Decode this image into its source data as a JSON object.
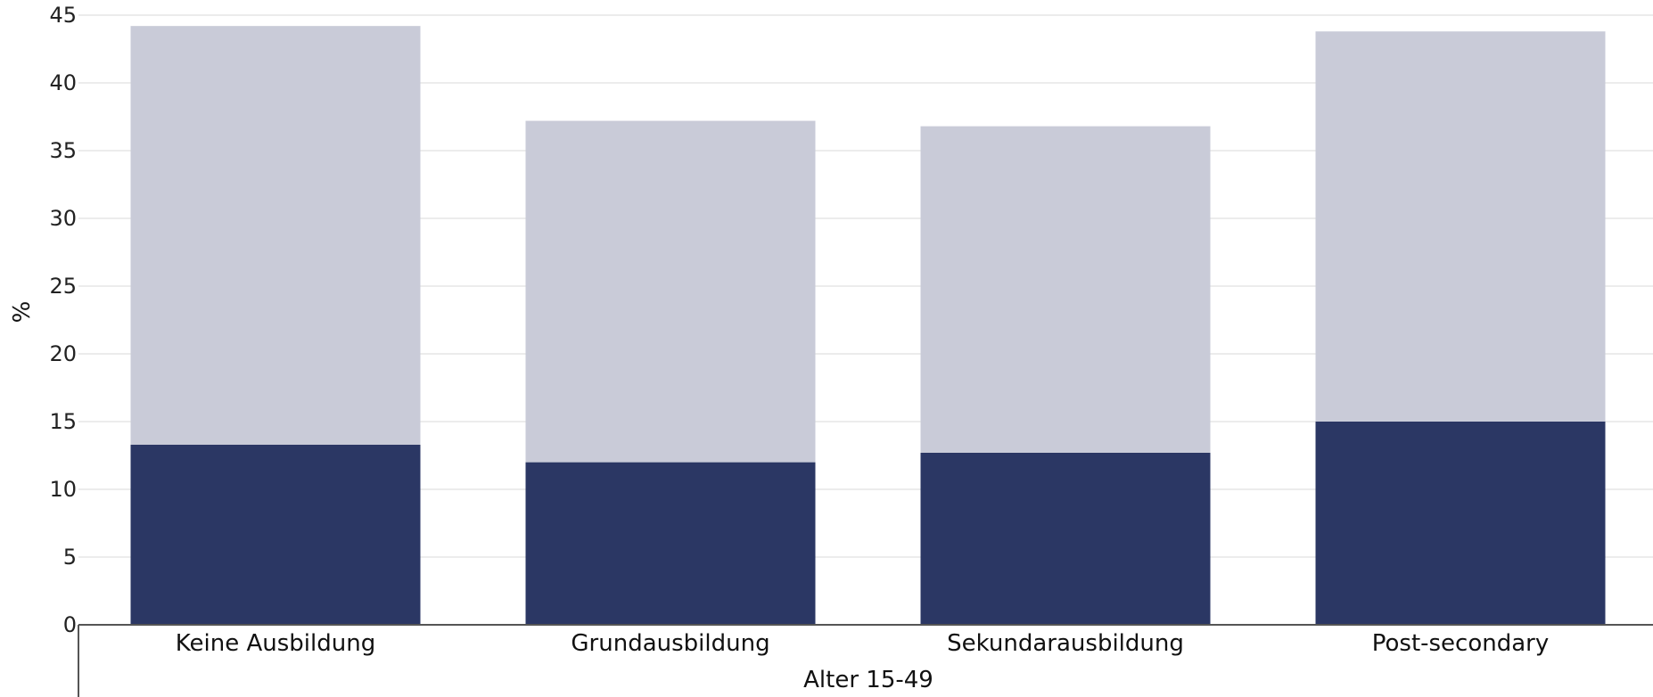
{
  "chart_data": {
    "type": "bar",
    "stacked": true,
    "categories": [
      "Keine Ausbildung",
      "Grundausbildung",
      "Sekundarausbildung",
      "Post-secondary"
    ],
    "series": [
      {
        "values": [
          13.3,
          12.0,
          12.7,
          15.0
        ],
        "color": "#2b3764"
      },
      {
        "values": [
          30.9,
          25.2,
          24.1,
          28.8
        ],
        "color": "#c9cbd8"
      }
    ],
    "xlabel": "Alter 15-49",
    "ylabel": "%",
    "ylim": [
      0,
      45
    ],
    "yticks": [
      0,
      5,
      10,
      15,
      20,
      25,
      30,
      35,
      40,
      45
    ],
    "grid": true
  }
}
